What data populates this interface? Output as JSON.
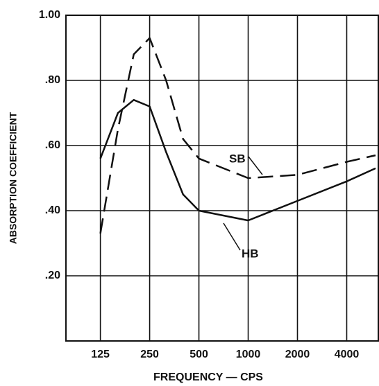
{
  "chart_data": {
    "type": "line",
    "xlabel": "FREQUENCY — CPS",
    "ylabel": "ABSORPTION COEFFICIENT",
    "xscale": "log",
    "xlim": [
      77,
      6300
    ],
    "ylim": [
      0,
      1
    ],
    "xticks": [
      125,
      250,
      500,
      1000,
      2000,
      4000
    ],
    "yticks": [
      {
        "value": 0.2,
        "label": ".20"
      },
      {
        "value": 0.4,
        "label": ".40"
      },
      {
        "value": 0.6,
        "label": ".60"
      },
      {
        "value": 0.8,
        "label": ".80"
      },
      {
        "value": 1.0,
        "label": "1.00"
      }
    ],
    "grid": true,
    "series": [
      {
        "name": "SB",
        "color": "#111111",
        "dash": true,
        "x": [
          125,
          160,
          200,
          250,
          315,
          400,
          500,
          1000,
          2000,
          4000,
          6000
        ],
        "values": [
          0.33,
          0.65,
          0.88,
          0.93,
          0.8,
          0.62,
          0.56,
          0.5,
          0.51,
          0.55,
          0.57
        ]
      },
      {
        "name": "HB",
        "color": "#111111",
        "dash": false,
        "x": [
          125,
          160,
          200,
          250,
          315,
          400,
          500,
          1000,
          2000,
          4000,
          6000
        ],
        "values": [
          0.56,
          0.7,
          0.74,
          0.72,
          0.58,
          0.45,
          0.4,
          0.37,
          0.43,
          0.49,
          0.53
        ]
      }
    ]
  }
}
